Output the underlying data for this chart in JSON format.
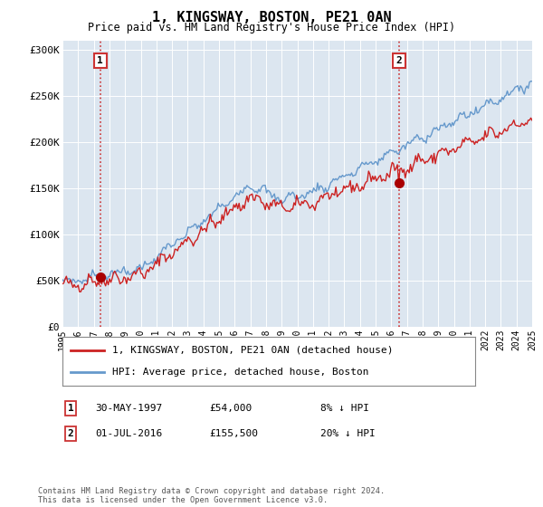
{
  "title": "1, KINGSWAY, BOSTON, PE21 0AN",
  "subtitle": "Price paid vs. HM Land Registry's House Price Index (HPI)",
  "hpi_label": "HPI: Average price, detached house, Boston",
  "price_label": "1, KINGSWAY, BOSTON, PE21 0AN (detached house)",
  "copyright": "Contains HM Land Registry data © Crown copyright and database right 2024.\nThis data is licensed under the Open Government Licence v3.0.",
  "ylim": [
    0,
    310000
  ],
  "yticks": [
    0,
    50000,
    100000,
    150000,
    200000,
    250000,
    300000
  ],
  "ytick_labels": [
    "£0",
    "£50K",
    "£100K",
    "£150K",
    "£200K",
    "£250K",
    "£300K"
  ],
  "plot_background": "#dce6f0",
  "hpi_color": "#6699cc",
  "price_color": "#cc2222",
  "marker_color": "#aa0000",
  "dashed_color": "#cc3333",
  "point1_x": 1997.42,
  "point1_y": 54000,
  "point2_x": 2016.5,
  "point2_y": 155500,
  "xmin": 1995,
  "xmax": 2025,
  "row1_num": "1",
  "row1_date": "30-MAY-1997",
  "row1_price": "£54,000",
  "row1_hpi": "8% ↓ HPI",
  "row2_num": "2",
  "row2_date": "01-JUL-2016",
  "row2_price": "£155,500",
  "row2_hpi": "20% ↓ HPI"
}
